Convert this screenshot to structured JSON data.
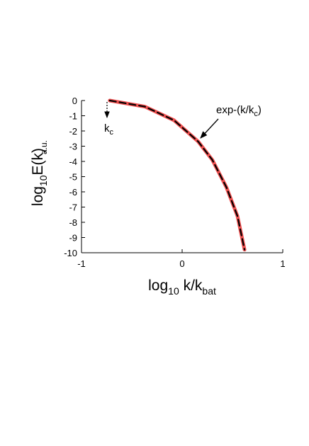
{
  "chart_data": {
    "type": "line",
    "ylabel": [
      "log",
      "10",
      "E(k)"
    ],
    "yunit": "a.u.",
    "xlabel": [
      "log",
      "10",
      " k/k",
      "bat"
    ],
    "annotation": [
      "exp-(k/k",
      "c",
      ")"
    ],
    "marker_label": [
      "k",
      "c"
    ],
    "x": [
      -0.72,
      -0.37,
      -0.08,
      0.16,
      0.3,
      0.44,
      0.55,
      0.62
    ],
    "series": [
      {
        "color": "#f05050",
        "values": [
          0,
          -0.4,
          -1.3,
          -2.7,
          -3.9,
          -5.7,
          -7.6,
          -9.8
        ]
      },
      {
        "color": "#000000",
        "values": [
          0,
          -0.4,
          -1.3,
          -2.7,
          -3.9,
          -5.7,
          -7.6,
          -9.8
        ]
      }
    ],
    "xlim": [
      -1,
      1
    ],
    "xticks": [
      -1,
      0,
      1
    ],
    "ylim": [
      -10,
      0
    ],
    "yticks": [
      0,
      -1,
      -2,
      -3,
      -4,
      -5,
      -6,
      -7,
      -8,
      -9,
      -10
    ]
  }
}
